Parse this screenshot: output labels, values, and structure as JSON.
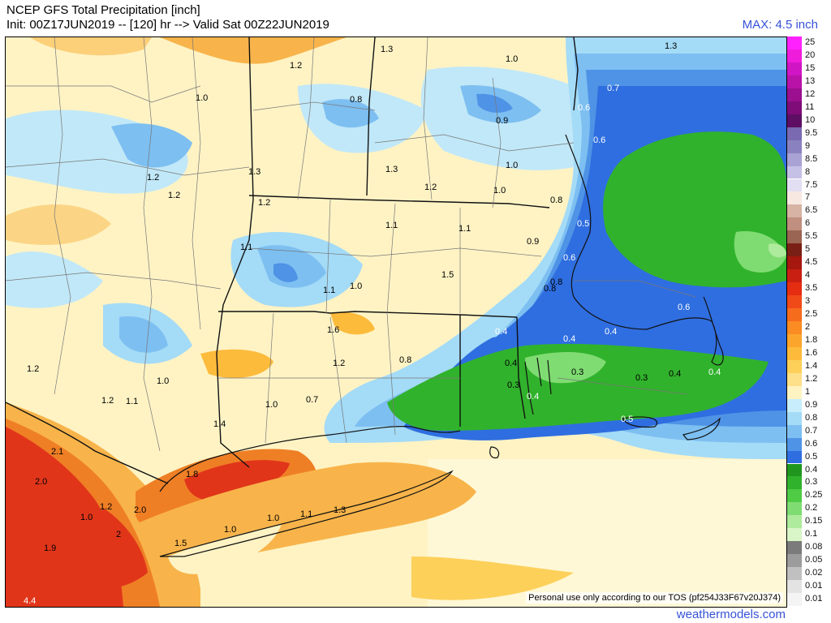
{
  "header": {
    "title": "NCEP GFS Total Precipitation [inch]",
    "subtitle": "Init: 00Z17JUN2019 -- [120] hr --> Valid Sat 00Z22JUN2019",
    "max_label": "MAX: 4.5 inch"
  },
  "footer": {
    "tos": "Personal use only according to our TOS (pf254J33F67v20J374)",
    "site": "weathermodels.com"
  },
  "colors": {
    "land_base": "#fff6c8",
    "light_blue": "#b9e7fb",
    "mid_blue": "#5fa7ec",
    "blue": "#2f6ee0",
    "deep_blue": "#1f52c4",
    "green": "#2aa62a",
    "light_green": "#7fd96a",
    "orange": "#f7b347",
    "dark_orange": "#ef7f25",
    "red": "#e1351a"
  },
  "colorbar": [
    {
      "label": "25",
      "color": "#ff22ff"
    },
    {
      "label": "20",
      "color": "#f01cdc"
    },
    {
      "label": "15",
      "color": "#d016c4"
    },
    {
      "label": "13",
      "color": "#b813a8"
    },
    {
      "label": "12",
      "color": "#9c0f8e"
    },
    {
      "label": "11",
      "color": "#7f0c78"
    },
    {
      "label": "10",
      "color": "#5e0e63"
    },
    {
      "label": "9.5",
      "color": "#7a6ab2"
    },
    {
      "label": "9",
      "color": "#8a82c0"
    },
    {
      "label": "8.5",
      "color": "#a8a3d4"
    },
    {
      "label": "8",
      "color": "#c5c1e6"
    },
    {
      "label": "7.5",
      "color": "#e2dff3"
    },
    {
      "label": "7",
      "color": "#f7e9e2"
    },
    {
      "label": "6.5",
      "color": "#d6b3a4"
    },
    {
      "label": "6",
      "color": "#c08f7f"
    },
    {
      "label": "5.5",
      "color": "#9a6552"
    },
    {
      "label": "5",
      "color": "#7a1f15"
    },
    {
      "label": "4.5",
      "color": "#a5170f"
    },
    {
      "label": "4",
      "color": "#c81f12"
    },
    {
      "label": "3.5",
      "color": "#e52d12"
    },
    {
      "label": "3",
      "color": "#f04a18"
    },
    {
      "label": "2.5",
      "color": "#f66c1d"
    },
    {
      "label": "2",
      "color": "#fa8c23"
    },
    {
      "label": "1.8",
      "color": "#fba52d"
    },
    {
      "label": "1.6",
      "color": "#fdbb3c"
    },
    {
      "label": "1.4",
      "color": "#fdd05a"
    },
    {
      "label": "1.2",
      "color": "#fee08a"
    },
    {
      "label": "1",
      "color": "#fff3c2"
    },
    {
      "label": "0.9",
      "color": "#c8eefb"
    },
    {
      "label": "0.8",
      "color": "#a4dbf7"
    },
    {
      "label": "0.7",
      "color": "#7dbff1"
    },
    {
      "label": "0.6",
      "color": "#4f93e6"
    },
    {
      "label": "0.5",
      "color": "#2f6ee0"
    },
    {
      "label": "0.4",
      "color": "#20961e"
    },
    {
      "label": "0.3",
      "color": "#31b22c"
    },
    {
      "label": "0.25",
      "color": "#4fcb45"
    },
    {
      "label": "0.2",
      "color": "#7fdc72"
    },
    {
      "label": "0.15",
      "color": "#aeeb9c"
    },
    {
      "label": "0.1",
      "color": "#d8f6c7"
    },
    {
      "label": "0.08",
      "color": "#7b7b7b"
    },
    {
      "label": "0.05",
      "color": "#9c9c9c"
    },
    {
      "label": "0.02",
      "color": "#c0c0c0"
    },
    {
      "label": "0.01",
      "color": "#e3e3e3"
    },
    {
      "label": "0.01",
      "color": "#f4f4f4"
    }
  ],
  "map_labels": [
    {
      "t": "1.2"
    },
    {
      "t": "1.3"
    },
    {
      "t": "1.0"
    },
    {
      "t": "1.3"
    },
    {
      "t": "1.0"
    },
    {
      "t": "0.8"
    },
    {
      "t": "0.7"
    },
    {
      "t": "0.6"
    },
    {
      "t": "0.9"
    },
    {
      "t": "0.6"
    },
    {
      "t": "1.2"
    },
    {
      "t": "1.2"
    },
    {
      "t": "1.3"
    },
    {
      "t": "1.3"
    },
    {
      "t": "1.2"
    },
    {
      "t": "1.0"
    },
    {
      "t": "1.0"
    },
    {
      "t": "0.8"
    },
    {
      "t": "1.2"
    },
    {
      "t": "1.1"
    },
    {
      "t": "1.1"
    },
    {
      "t": "0.5"
    },
    {
      "t": "0.9"
    },
    {
      "t": "1.1"
    },
    {
      "t": "1.1"
    },
    {
      "t": "1.0"
    },
    {
      "t": "1.5"
    },
    {
      "t": "0.6"
    },
    {
      "t": "0.8"
    },
    {
      "t": "0.8"
    },
    {
      "t": "0.6"
    },
    {
      "t": "0.4"
    },
    {
      "t": "0.4"
    },
    {
      "t": "0.4"
    },
    {
      "t": "1.6"
    },
    {
      "t": "1.2"
    },
    {
      "t": "0.8"
    },
    {
      "t": "0.4"
    },
    {
      "t": "0.3"
    },
    {
      "t": "0.3"
    },
    {
      "t": "0.3"
    },
    {
      "t": "0.4"
    },
    {
      "t": "0.4"
    },
    {
      "t": "0.4"
    },
    {
      "t": "1.2"
    },
    {
      "t": "1.0"
    },
    {
      "t": "1.2"
    },
    {
      "t": "1.1"
    },
    {
      "t": "1.0"
    },
    {
      "t": "0.7"
    },
    {
      "t": "0.5"
    },
    {
      "t": "1.4"
    },
    {
      "t": "2.1"
    },
    {
      "t": "2.0"
    },
    {
      "t": "1.8"
    },
    {
      "t": "1.0"
    },
    {
      "t": "1.2"
    },
    {
      "t": "2.0"
    },
    {
      "t": "1.0"
    },
    {
      "t": "1.1"
    },
    {
      "t": "1.3"
    },
    {
      "t": "1.9"
    },
    {
      "t": "1.0"
    },
    {
      "t": "1.5"
    },
    {
      "t": "2"
    },
    {
      "t": "4.4"
    }
  ]
}
